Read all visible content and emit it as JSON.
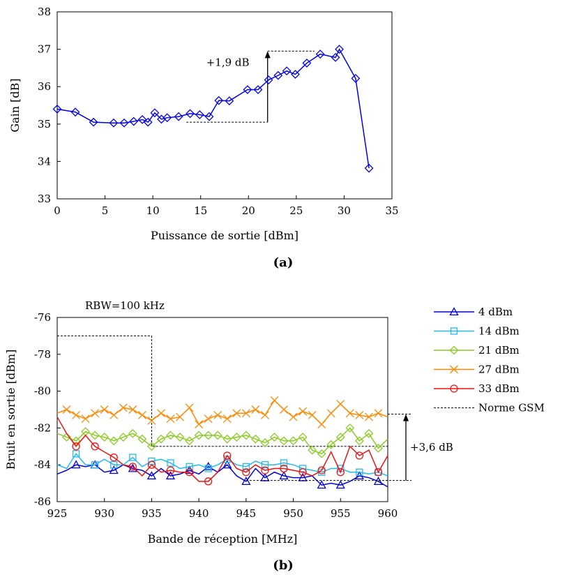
{
  "chart_data": [
    {
      "type": "line",
      "panel_label": "(a)",
      "xlabel": "Puissance de sortie [dBm]",
      "ylabel": "Gain [dB]",
      "xlim": [
        0,
        35
      ],
      "ylim": [
        33,
        38
      ],
      "xticks": [
        "0",
        "5",
        "10",
        "15",
        "20",
        "25",
        "30",
        "35"
      ],
      "yticks": [
        "33",
        "34",
        "35",
        "36",
        "37",
        "38"
      ],
      "grid": false,
      "series": [
        {
          "color": "#0000ee",
          "marker": "diamond",
          "x": [
            0.0,
            1.9,
            3.8,
            5.9,
            7.0,
            8.0,
            8.9,
            9.5,
            10.2,
            10.9,
            11.5,
            12.7,
            13.9,
            14.9,
            15.9,
            16.9,
            18.0,
            19.9,
            21.0,
            22.1,
            23.1,
            24.0,
            24.9,
            26.1,
            27.5,
            29.1,
            29.5,
            31.2,
            32.6
          ],
          "y": [
            35.4,
            35.32,
            35.05,
            35.03,
            35.03,
            35.07,
            35.12,
            35.05,
            35.3,
            35.13,
            35.17,
            35.2,
            35.28,
            35.25,
            35.2,
            35.63,
            35.62,
            35.92,
            35.92,
            36.18,
            36.3,
            36.42,
            36.33,
            36.63,
            36.87,
            36.78,
            37.0,
            36.22,
            33.82
          ]
        }
      ],
      "annotation": {
        "label": "+1,9 dB",
        "from": [
          13.5,
          35.05
        ],
        "to": [
          26.9,
          36.95
        ],
        "arrow_x": 22.0
      }
    },
    {
      "type": "line",
      "panel_label": "(b)",
      "title": "RBW=100 kHz",
      "xlabel": "Bande de réception [MHz]",
      "ylabel": "Bruit en sortie [dBm]",
      "xlim": [
        925,
        960
      ],
      "ylim": [
        -86,
        -76
      ],
      "xticks": [
        "925",
        "930",
        "935",
        "940",
        "945",
        "950",
        "955",
        "960"
      ],
      "yticks": [
        "-86",
        "-84",
        "-82",
        "-80",
        "-78",
        "-76"
      ],
      "grid": false,
      "legend_position": "right",
      "x": [
        925,
        926,
        927,
        928,
        929,
        930,
        931,
        932,
        933,
        934,
        935,
        936,
        937,
        938,
        939,
        940,
        941,
        942,
        943,
        944,
        945,
        946,
        947,
        948,
        949,
        950,
        951,
        952,
        953,
        954,
        955,
        956,
        957,
        958,
        959,
        960
      ],
      "series": [
        {
          "name": "4 dBm",
          "color": "#0000dd",
          "marker": "triangle",
          "values": [
            -84.5,
            -84.3,
            -84.0,
            -84.1,
            -84.0,
            -84.4,
            -84.3,
            -84.0,
            -84.2,
            -84.3,
            -84.6,
            -84.2,
            -84.6,
            -84.5,
            -84.3,
            -84.5,
            -84.1,
            -84.4,
            -84.0,
            -84.6,
            -84.9,
            -84.2,
            -84.7,
            -84.4,
            -84.6,
            -84.7,
            -84.7,
            -84.6,
            -85.1,
            -85.0,
            -85.1,
            -84.9,
            -84.6,
            -84.7,
            -84.9,
            -85.2
          ]
        },
        {
          "name": "14 dBm",
          "color": "#22bbee",
          "marker": "square",
          "values": [
            -84.0,
            -84.2,
            -83.4,
            -84.0,
            -84.0,
            -83.7,
            -84.0,
            -84.0,
            -83.6,
            -84.1,
            -83.8,
            -83.7,
            -83.9,
            -84.2,
            -84.1,
            -84.0,
            -84.2,
            -84.0,
            -83.7,
            -84.0,
            -84.1,
            -83.8,
            -84.0,
            -84.0,
            -83.9,
            -84.0,
            -84.2,
            -84.3,
            -84.4,
            -84.2,
            -84.2,
            -84.4,
            -84.4,
            -84.5,
            -84.4,
            -84.6
          ]
        },
        {
          "name": "21 dBm",
          "color": "#88cc22",
          "marker": "diamond",
          "values": [
            -82.3,
            -82.5,
            -82.7,
            -82.2,
            -82.4,
            -82.5,
            -82.7,
            -82.5,
            -82.3,
            -82.6,
            -83.0,
            -82.6,
            -82.4,
            -82.5,
            -82.7,
            -82.4,
            -82.4,
            -82.4,
            -82.6,
            -82.5,
            -82.4,
            -82.6,
            -82.8,
            -82.5,
            -82.7,
            -82.7,
            -82.5,
            -83.2,
            -83.4,
            -82.9,
            -82.5,
            -82.0,
            -82.7,
            -82.3,
            -83.1,
            -82.6
          ]
        },
        {
          "name": "27 dBm",
          "color": "#ff8800",
          "marker": "x",
          "values": [
            -81.2,
            -81.0,
            -81.3,
            -81.5,
            -81.2,
            -81.0,
            -81.3,
            -80.9,
            -81.0,
            -81.3,
            -81.6,
            -81.2,
            -81.5,
            -81.4,
            -80.9,
            -81.8,
            -81.5,
            -81.3,
            -81.5,
            -81.2,
            -81.2,
            -81.0,
            -81.3,
            -80.5,
            -81.0,
            -81.4,
            -81.1,
            -81.3,
            -81.8,
            -81.2,
            -80.7,
            -81.2,
            -81.3,
            -81.4,
            -81.2,
            -81.4
          ]
        },
        {
          "name": "33 dBm",
          "color": "#ee1111",
          "marker": "circle",
          "values": [
            -81.4,
            -82.3,
            -83.0,
            -82.4,
            -83.0,
            -83.3,
            -83.6,
            -84.0,
            -84.1,
            -84.6,
            -84.0,
            -84.4,
            -84.3,
            -84.4,
            -84.4,
            -84.9,
            -84.9,
            -84.4,
            -83.5,
            -84.2,
            -84.4,
            -84.0,
            -84.3,
            -84.2,
            -84.2,
            -84.3,
            -84.4,
            -84.6,
            -84.3,
            -83.3,
            -84.4,
            -83.0,
            -83.5,
            -83.2,
            -84.4,
            -83.5
          ]
        }
      ],
      "reference": {
        "name": "Norme GSM",
        "style": "dashed",
        "color": "#000000",
        "steps": [
          [
            925,
            -77
          ],
          [
            935,
            -77
          ],
          [
            935,
            -83
          ],
          [
            960,
            -83
          ]
        ]
      },
      "annotation": {
        "label": "+3,6 dB",
        "from": -84.85,
        "to": -81.25
      }
    }
  ]
}
